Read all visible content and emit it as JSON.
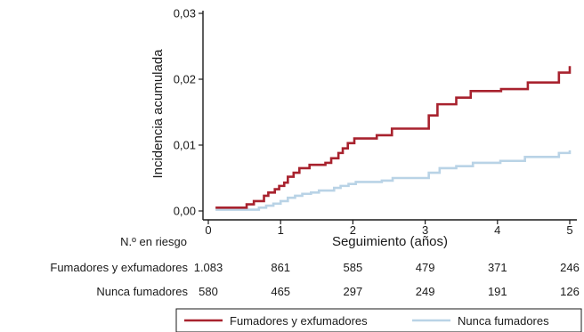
{
  "chart_data": {
    "type": "line",
    "step": true,
    "xlabel": "Seguimiento (años)",
    "ylabel": "Incidencia acumulada",
    "xlim": [
      0,
      5
    ],
    "ylim": [
      0,
      0.03
    ],
    "x_ticks": [
      "0",
      "1",
      "2",
      "3",
      "4",
      "5"
    ],
    "y_ticks": [
      "0,00",
      "0,01",
      "0,02",
      "0,03"
    ],
    "grid": false,
    "series": [
      {
        "name": "Fumadores y exfumadores",
        "color": "#a8222e",
        "x": [
          0.1,
          0.53,
          0.63,
          0.77,
          0.83,
          0.92,
          0.98,
          1.05,
          1.1,
          1.18,
          1.26,
          1.4,
          1.62,
          1.7,
          1.8,
          1.86,
          1.93,
          2.02,
          2.33,
          2.54,
          3.05,
          3.17,
          3.43,
          3.63,
          4.05,
          4.42,
          4.85,
          5.0
        ],
        "y": [
          0.0005,
          0.001,
          0.0015,
          0.0023,
          0.0028,
          0.0033,
          0.0038,
          0.0043,
          0.0052,
          0.0058,
          0.0065,
          0.007,
          0.0073,
          0.008,
          0.0088,
          0.0095,
          0.0103,
          0.011,
          0.0115,
          0.0125,
          0.0145,
          0.0162,
          0.0172,
          0.0182,
          0.0185,
          0.0195,
          0.021,
          0.022
        ]
      },
      {
        "name": "Nunca fumadores",
        "color": "#b9d3e6",
        "x": [
          0.1,
          0.7,
          0.8,
          0.9,
          1.0,
          1.1,
          1.2,
          1.3,
          1.42,
          1.53,
          1.74,
          1.83,
          1.94,
          2.04,
          2.4,
          2.55,
          3.05,
          3.2,
          3.43,
          3.66,
          4.04,
          4.38,
          4.85,
          5.0
        ],
        "y": [
          0.0002,
          0.0005,
          0.0008,
          0.0011,
          0.0015,
          0.002,
          0.0023,
          0.0026,
          0.0028,
          0.0031,
          0.0035,
          0.0038,
          0.0041,
          0.0044,
          0.0046,
          0.005,
          0.0058,
          0.0065,
          0.0068,
          0.0073,
          0.0076,
          0.0082,
          0.0088,
          0.0092
        ]
      }
    ],
    "risk_table": {
      "title": "N.º en riesgo",
      "rows": [
        {
          "label": "Fumadores y exfumadores",
          "values": [
            "1.083",
            "861",
            "585",
            "479",
            "371",
            "246"
          ]
        },
        {
          "label": "Nunca fumadores",
          "values": [
            "580",
            "465",
            "297",
            "249",
            "191",
            "126"
          ]
        }
      ]
    },
    "legend": {
      "placement": "bottom",
      "entries": [
        "Fumadores y exfumadores",
        "Nunca fumadores"
      ]
    }
  }
}
